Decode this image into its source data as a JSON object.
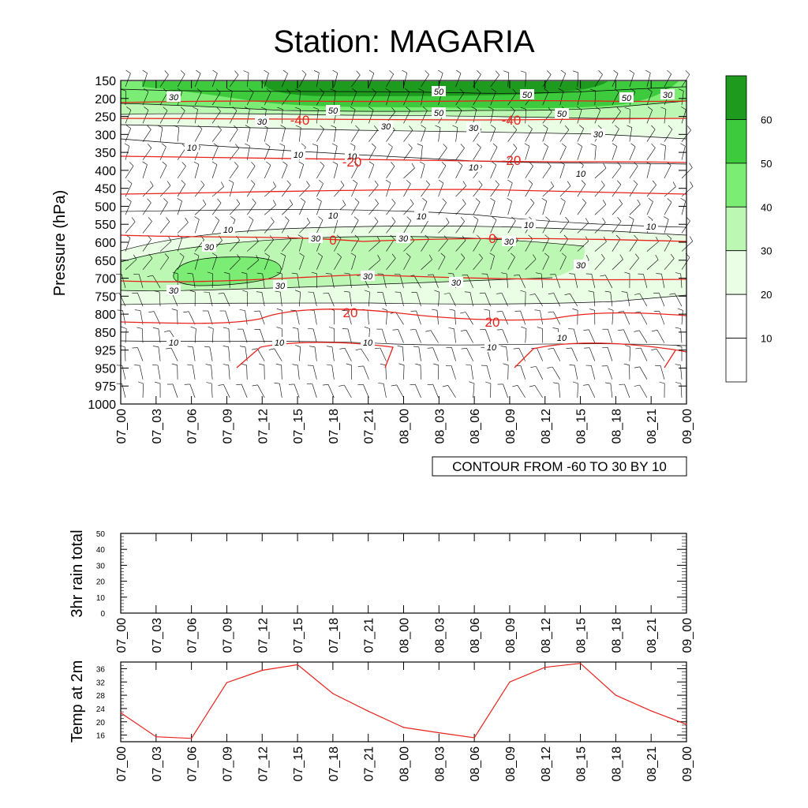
{
  "page": {
    "title": "Station: MAGARIA",
    "contour_note": "CONTOUR FROM -60 TO 30 BY 10"
  },
  "colors": {
    "temperature_line": "#e8231c",
    "wind_contour": "#000000",
    "shade_levels": [
      "#ffffff",
      "#ffffff",
      "#eafde5",
      "#bdf7b4",
      "#7ced74",
      "#3dcb3d",
      "#1e9a1e"
    ]
  },
  "time_labels": [
    "07_00",
    "07_03",
    "07_06",
    "07_09",
    "07_12",
    "07_15",
    "07_18",
    "07_21",
    "08_00",
    "08_03",
    "08_06",
    "08_09",
    "08_12",
    "08_15",
    "08_18",
    "08_21",
    "09_00"
  ],
  "chart_data": [
    {
      "type": "heatmap",
      "description_panel": "time-pressure cross section",
      "title": "Station: MAGARIA",
      "ylabel": "Pressure (hPa)",
      "pressure_levels": [
        150,
        200,
        250,
        300,
        350,
        400,
        450,
        500,
        550,
        600,
        650,
        700,
        750,
        800,
        850,
        925,
        950,
        975,
        1000
      ],
      "x_categories": [
        "07_00",
        "07_03",
        "07_06",
        "07_09",
        "07_12",
        "07_15",
        "07_18",
        "07_21",
        "08_00",
        "08_03",
        "08_06",
        "08_09",
        "08_12",
        "08_15",
        "08_18",
        "08_21",
        "09_00"
      ],
      "shading_label_bar": {
        "levels": [
          10,
          20,
          30,
          40,
          50,
          60
        ],
        "labels": [
          "10",
          "20",
          "30",
          "40",
          "50",
          "60"
        ]
      },
      "wind_speed_contour_labels": [
        "10",
        "30",
        "50"
      ],
      "temperature_contours": [
        {
          "label": "-40",
          "level": "-40"
        },
        {
          "label": "-20",
          "level": "-20"
        },
        {
          "label": "0",
          "level": "0"
        },
        {
          "label": "20",
          "level": "20"
        }
      ],
      "contour_note": "CONTOUR FROM -60 TO 30 BY 10"
    },
    {
      "type": "line",
      "ylabel": "3hr rain total",
      "x": [
        "07_00",
        "07_03",
        "07_06",
        "07_09",
        "07_12",
        "07_15",
        "07_18",
        "07_21",
        "08_00",
        "08_03",
        "08_06",
        "08_09",
        "08_12",
        "08_15",
        "08_18",
        "08_21",
        "09_00"
      ],
      "yticks": [
        0,
        10,
        20,
        30,
        40,
        50
      ],
      "ylim": [
        0,
        50
      ],
      "values": [
        0,
        0,
        0,
        0,
        0,
        0,
        0,
        0,
        0,
        0,
        0,
        0,
        0,
        0,
        0,
        0,
        0
      ]
    },
    {
      "type": "line",
      "ylabel": "Temp at 2m",
      "x": [
        "07_00",
        "07_03",
        "07_06",
        "07_09",
        "07_12",
        "07_15",
        "07_18",
        "07_21",
        "08_00",
        "08_03",
        "08_06",
        "08_09",
        "08_12",
        "08_15",
        "08_18",
        "08_21",
        "09_00"
      ],
      "yticks": [
        16,
        20,
        24,
        28,
        32,
        36
      ],
      "ylim": [
        14,
        38
      ],
      "values": [
        22.7,
        15.5,
        15.0,
        31.8,
        35.5,
        37.2,
        28.5,
        23.2,
        18.3,
        16.7,
        15.2,
        32.0,
        36.4,
        37.6,
        28.0,
        23.3,
        19.2
      ],
      "color": "#e8231c"
    }
  ]
}
